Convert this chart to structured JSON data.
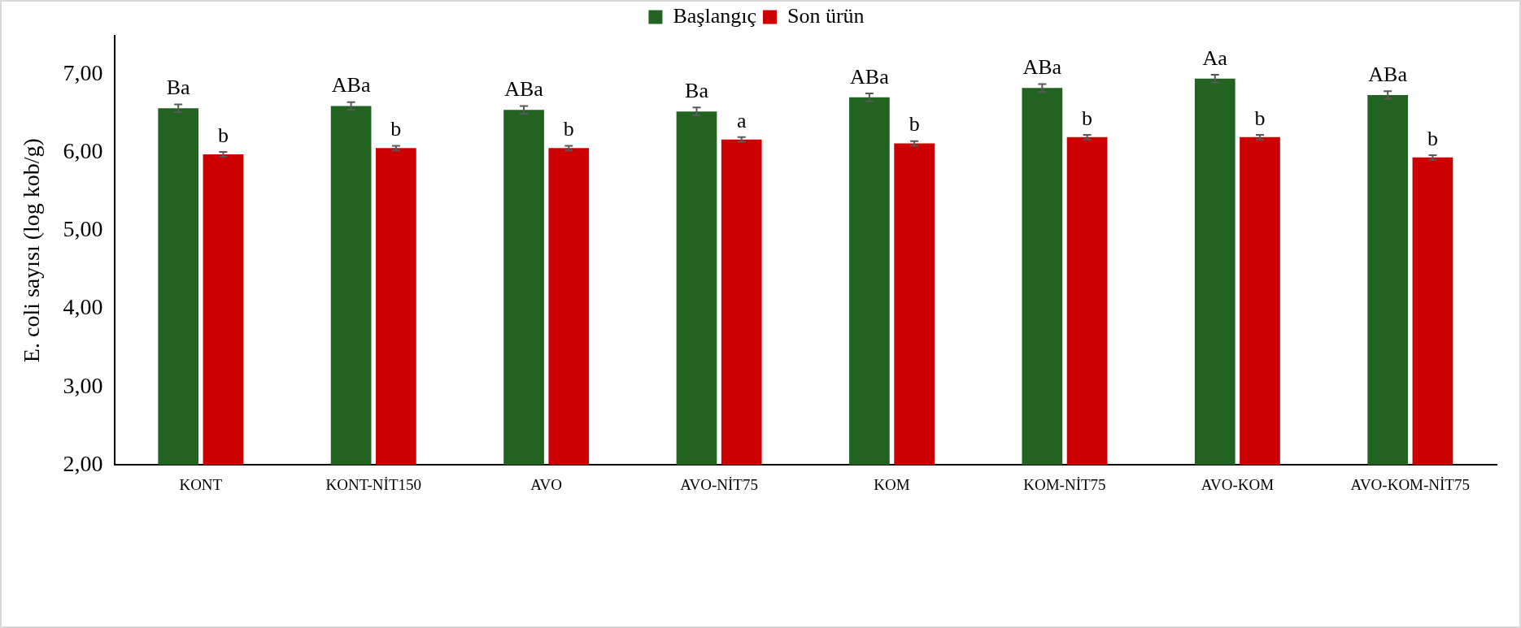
{
  "chart_data": {
    "type": "bar",
    "ylabel": "E. coli sayısı (log kob/g)",
    "categories": [
      "KONT",
      "KONT-NİT150",
      "AVO",
      "AVO-NİT75",
      "KOM",
      "KOM-NİT75",
      "AVO-KOM",
      "AVO-KOM-NİT75"
    ],
    "series": [
      {
        "name": "Başlangıç",
        "color": "#226322",
        "values": [
          6.57,
          6.6,
          6.55,
          6.53,
          6.71,
          6.83,
          6.95,
          6.74
        ],
        "errors": [
          0.05,
          0.05,
          0.05,
          0.05,
          0.05,
          0.05,
          0.05,
          0.05
        ],
        "value_labels": [
          "Ba",
          "ABa",
          "ABa",
          "Ba",
          "ABa",
          "ABa",
          "Aa",
          "ABa"
        ]
      },
      {
        "name": "Son ürün",
        "color": "#cc0000",
        "values": [
          5.98,
          6.06,
          6.06,
          6.17,
          6.12,
          6.2,
          6.2,
          5.94
        ],
        "errors": [
          0.03,
          0.03,
          0.03,
          0.03,
          0.03,
          0.03,
          0.03,
          0.03
        ],
        "value_labels": [
          "b",
          "b",
          "b",
          "a",
          "b",
          "b",
          "b",
          "b"
        ]
      }
    ],
    "ylim": [
      2,
      7.5
    ],
    "yticks": [
      {
        "value": 2,
        "label": "2,00"
      },
      {
        "value": 3,
        "label": "3,00"
      },
      {
        "value": 4,
        "label": "4,00"
      },
      {
        "value": 5,
        "label": "5,00"
      },
      {
        "value": 6,
        "label": "6,00"
      },
      {
        "value": 7,
        "label": "7,00"
      }
    ],
    "grid": false,
    "legend": "top"
  }
}
